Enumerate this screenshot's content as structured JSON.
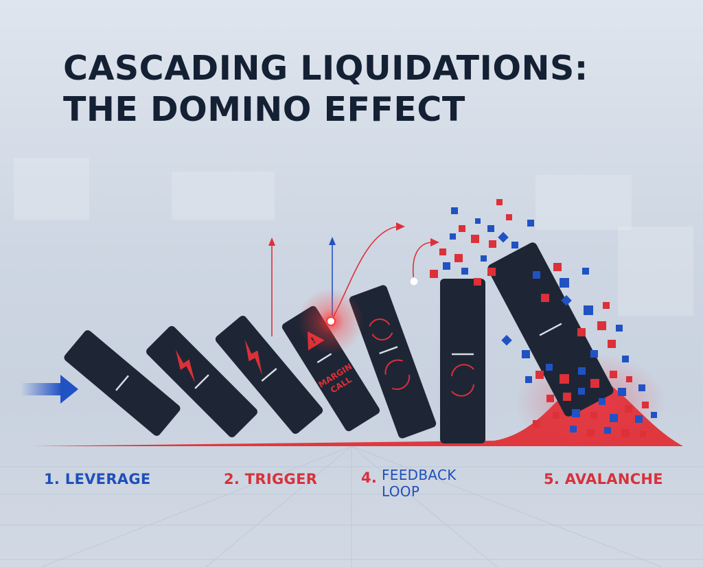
{
  "title": {
    "line1": "CASCADING LIQUIDATIONS:",
    "line2": "THE DOMINO EFFECT"
  },
  "dominoes": [
    {
      "id": 1,
      "mark": "line"
    },
    {
      "id": 2,
      "mark": "lightning"
    },
    {
      "id": 3,
      "mark": "lightning"
    },
    {
      "id": 4,
      "mark": "warning",
      "text": "MARGIN CALL"
    },
    {
      "id": 5,
      "mark": "cycle"
    },
    {
      "id": 6,
      "mark": "cycle"
    },
    {
      "id": 7,
      "mark": "line"
    }
  ],
  "stages": [
    {
      "label": "1. LEVERAGE",
      "color": "blue"
    },
    {
      "label": "2. TRIGGER",
      "color": "red"
    },
    {
      "label_line1": "4. FEEDBACK",
      "label_line2": "LOOP",
      "color": "blue"
    },
    {
      "label": "5. AVALANCHE",
      "color": "red"
    }
  ],
  "colors": {
    "domino": "#1e2635",
    "accent_red": "#dd3038",
    "accent_blue": "#2152c4",
    "title": "#142033"
  }
}
